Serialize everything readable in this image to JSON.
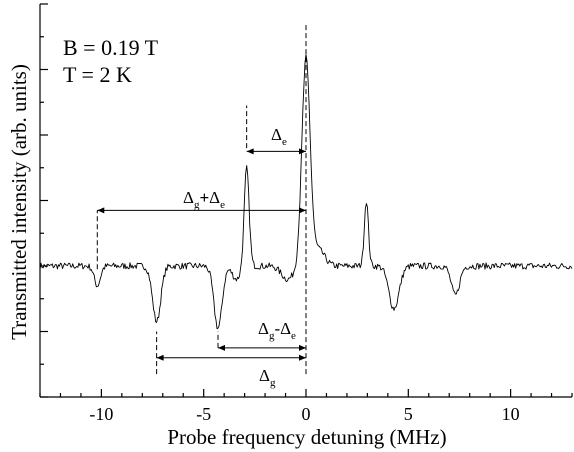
{
  "chart_data": {
    "type": "line",
    "title": "",
    "xlabel": "Probe frequency detuning (MHz)",
    "ylabel": "Transmitted intensity (arb. units)",
    "xlim": [
      -13,
      13
    ],
    "ylim": [
      -2,
      4
    ],
    "x_ticks": [
      -10,
      -5,
      0,
      5,
      10
    ],
    "x_tick_labels": [
      "-10",
      "-5",
      "0",
      "5",
      "10"
    ],
    "y_tick_labels_shown": false,
    "grid": false,
    "annotations_text": {
      "field": "B = 0.19 T",
      "temperature": "T = 2 K"
    },
    "series": [
      {
        "baseline": 0,
        "noise_amplitude": 0.05,
        "features": [
          {
            "kind": "dip",
            "x": -10.2,
            "amplitude": -0.3,
            "width": 0.15
          },
          {
            "kind": "dip",
            "x": -7.3,
            "amplitude": -0.85,
            "width": 0.2
          },
          {
            "kind": "dip",
            "x": -4.3,
            "amplitude": -0.95,
            "width": 0.2
          },
          {
            "kind": "peak",
            "x": -2.9,
            "amplitude": 1.5,
            "width": 0.12
          },
          {
            "kind": "dip",
            "x": -3.4,
            "amplitude": -0.2,
            "width": 0.2
          },
          {
            "kind": "dip",
            "x": -0.9,
            "amplitude": -0.2,
            "width": 0.3
          },
          {
            "kind": "peak",
            "x": 0.0,
            "amplitude": 3.15,
            "width": 0.2
          },
          {
            "kind": "peak",
            "x": 0.6,
            "amplitude": 0.25,
            "width": 0.3
          },
          {
            "kind": "peak",
            "x": 2.95,
            "amplitude": 1.0,
            "width": 0.1
          },
          {
            "kind": "dip",
            "x": 4.3,
            "amplitude": -0.65,
            "width": 0.25
          },
          {
            "kind": "dip",
            "x": 7.3,
            "amplitude": -0.45,
            "width": 0.2
          }
        ]
      }
    ],
    "markers": {
      "dashed_lines": [
        {
          "x": 0.0,
          "y_from": -1.65,
          "y_to": 3.7
        },
        {
          "x": -2.9,
          "y_from": 1.8,
          "y_to": 2.45
        },
        {
          "x": -10.2,
          "y_from": -0.05,
          "y_to": 0.85
        },
        {
          "x": -7.3,
          "y_from": -1.65,
          "y_to": -1.0
        },
        {
          "x": -4.3,
          "y_from": -1.25,
          "y_to": -1.0
        }
      ],
      "arrows": [
        {
          "label": "Δe",
          "x_from": -2.9,
          "x_to": 0.0,
          "y": 1.75
        },
        {
          "label": "Δg+Δe",
          "x_from": -10.2,
          "x_to": 0.0,
          "y": 0.85
        },
        {
          "label": "Δg-Δe",
          "x_from": -4.3,
          "x_to": 0.0,
          "y": -1.25
        },
        {
          "label": "Δg",
          "x_from": -7.3,
          "x_to": 0.0,
          "y": -1.4
        }
      ]
    },
    "labels": {
      "delta_e": {
        "base": "Δ",
        "sub": "e"
      },
      "delta_g_plus_e": {
        "base1": "Δ",
        "sub1": "g",
        "op": "+",
        "base2": "Δ",
        "sub2": "e"
      },
      "delta_g_minus_e": {
        "base1": "Δ",
        "sub1": "g",
        "op": "-",
        "base2": "Δ",
        "sub2": "e"
      },
      "delta_g": {
        "base": "Δ",
        "sub": "g"
      }
    }
  }
}
